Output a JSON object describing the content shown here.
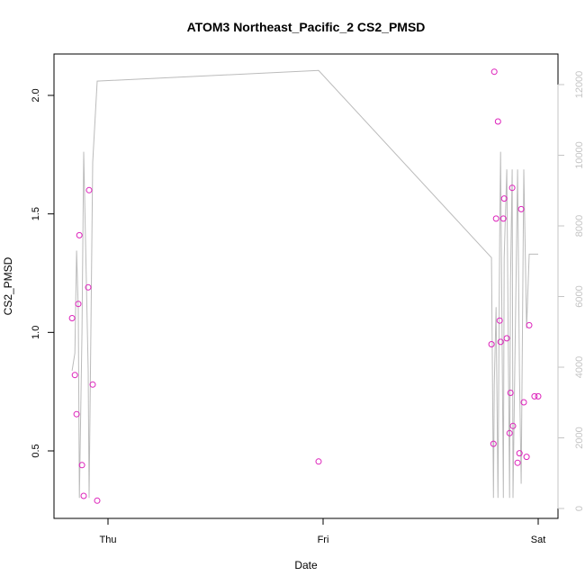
{
  "chart_data": {
    "type": "scatter",
    "title": "ATOM3 Northeast_Pacific_2 CS2_PMSD",
    "xlabel": "Date",
    "ylabel": "CS2_PMSD",
    "x_ticks": [
      "Thu",
      "Fri",
      "Sat"
    ],
    "ylim": [
      0.25,
      2.2
    ],
    "y_ticks": [
      "0.5",
      "1.0",
      "1.5",
      "2.0"
    ],
    "y2lim": [
      -300,
      12800
    ],
    "y2_ticks": [
      "0",
      "2000",
      "4000",
      "6000",
      "8000",
      "10000",
      "12000"
    ],
    "grid": false,
    "colors": {
      "points": "#dd22bb",
      "line": "#bbbbbb",
      "right_axis": "#c4c4c4",
      "axis": "#000000"
    },
    "series": [
      {
        "kind": "points",
        "axis": "left",
        "x": [
          -0.167,
          -0.154,
          -0.146,
          -0.138,
          -0.133,
          -0.121,
          -0.113,
          -0.092,
          -0.088,
          -0.071,
          -0.05,
          0.979,
          1.783,
          1.792,
          1.796,
          1.804,
          1.813,
          1.821,
          1.825,
          1.838,
          1.842,
          1.854,
          1.867,
          1.871,
          1.879,
          1.883,
          1.904,
          1.913,
          1.921,
          1.933,
          1.946,
          1.958,
          1.983,
          2.0
        ],
        "y": [
          1.06,
          0.82,
          0.655,
          1.12,
          1.41,
          0.44,
          0.31,
          1.19,
          1.6,
          0.78,
          0.29,
          0.455,
          0.95,
          0.53,
          2.1,
          1.48,
          1.89,
          1.05,
          0.96,
          1.48,
          1.565,
          0.975,
          0.575,
          0.745,
          1.61,
          0.605,
          0.45,
          0.49,
          1.52,
          0.705,
          0.475,
          1.03,
          0.73,
          0.73
        ]
      },
      {
        "kind": "line",
        "axis": "right",
        "x": [
          -0.167,
          -0.154,
          -0.146,
          -0.138,
          -0.133,
          -0.121,
          -0.113,
          -0.092,
          -0.088,
          -0.071,
          -0.05,
          0.979,
          1.783,
          1.792,
          1.796,
          1.804,
          1.813,
          1.821,
          1.825,
          1.838,
          1.842,
          1.854,
          1.867,
          1.871,
          1.879,
          1.883,
          1.904,
          1.913,
          1.921,
          1.933,
          1.946,
          1.958,
          1.983,
          2.0
        ],
        "y": [
          3900,
          4400,
          7300,
          5600,
          300,
          5000,
          10100,
          3900,
          300,
          9800,
          12100,
          12400,
          7100,
          300,
          3500,
          5700,
          300,
          7700,
          10100,
          300,
          7100,
          9600,
          300,
          6400,
          9600,
          300,
          9600,
          3800,
          700,
          9600,
          5100,
          7200,
          7200,
          7200
        ]
      }
    ]
  }
}
